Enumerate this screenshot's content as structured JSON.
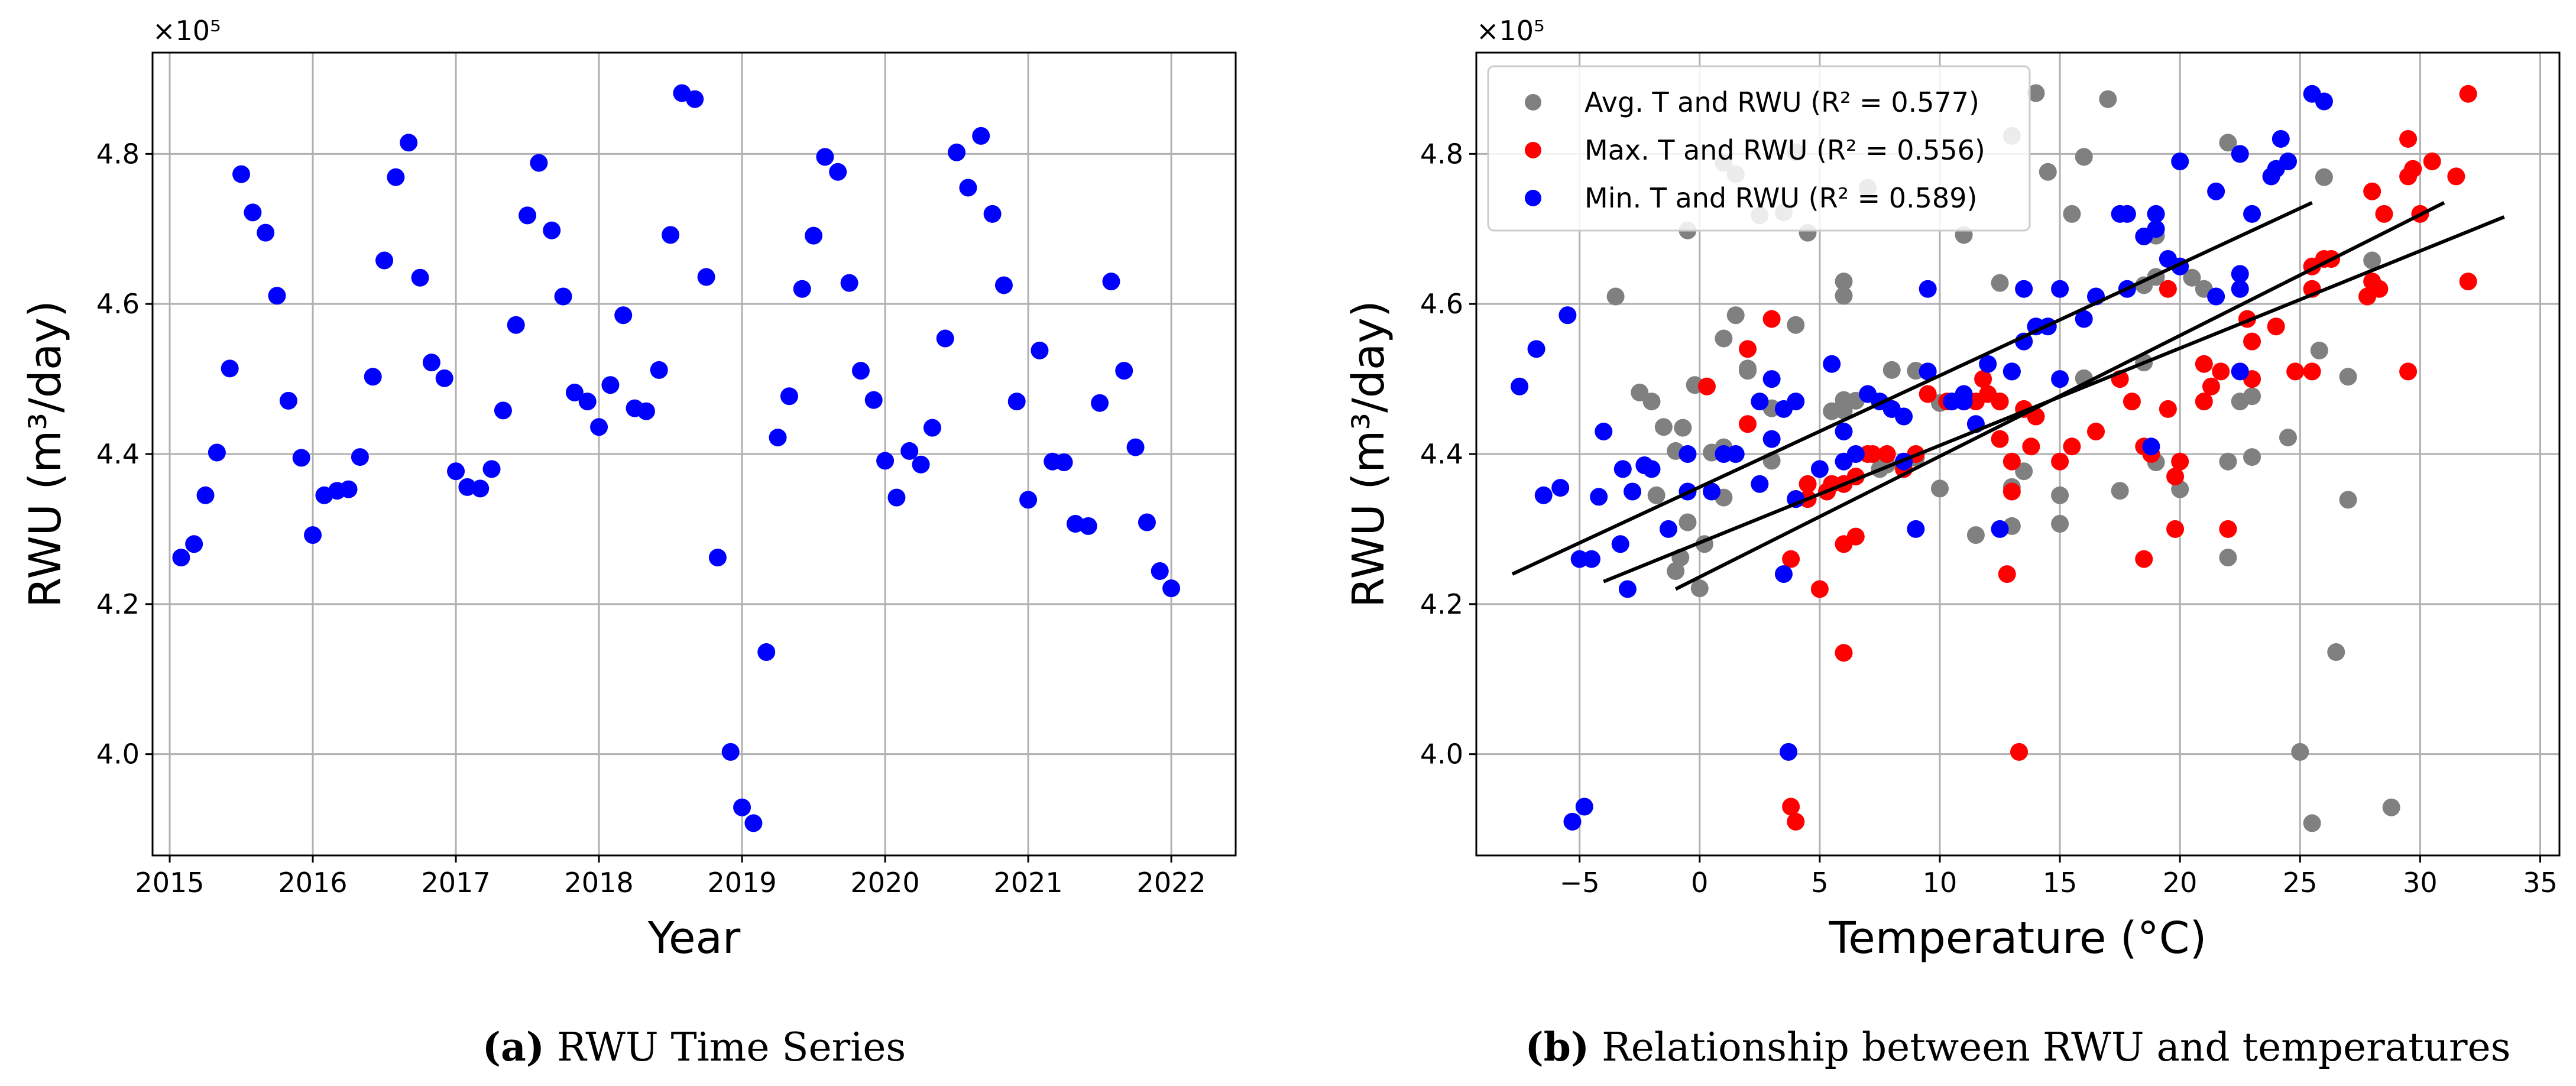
{
  "chart_data": [
    {
      "type": "scatter",
      "panel": "a",
      "caption_letter": "(a)",
      "caption_text": " RWU Time Series",
      "xlabel": "Year",
      "ylabel": "RWU (m³/day)",
      "y_multiplier": "×10⁵",
      "xlim": [
        2014.88,
        2022.45
      ],
      "ylim": [
        3.865,
        4.935
      ],
      "xticks": [
        2015,
        2016,
        2017,
        2018,
        2019,
        2020,
        2021,
        2022
      ],
      "yticks": [
        4.0,
        4.2,
        4.4,
        4.6,
        4.8
      ],
      "grid": true,
      "color": "#0000ff",
      "x": [
        2015.08,
        2015.17,
        2015.25,
        2015.33,
        2015.42,
        2015.5,
        2015.58,
        2015.67,
        2015.75,
        2015.83,
        2015.92,
        2016.0,
        2016.08,
        2016.17,
        2016.25,
        2016.33,
        2016.42,
        2016.5,
        2016.58,
        2016.67,
        2016.75,
        2016.83,
        2016.92,
        2017.0,
        2017.08,
        2017.17,
        2017.25,
        2017.33,
        2017.42,
        2017.5,
        2017.58,
        2017.67,
        2017.75,
        2017.83,
        2017.92,
        2018.0,
        2018.08,
        2018.17,
        2018.25,
        2018.33,
        2018.42,
        2018.5,
        2018.58,
        2018.67,
        2018.75,
        2018.83,
        2018.92,
        2019.0,
        2019.08,
        2019.17,
        2019.25,
        2019.33,
        2019.42,
        2019.5,
        2019.58,
        2019.67,
        2019.75,
        2019.83,
        2019.92,
        2020.0,
        2020.08,
        2020.17,
        2020.25,
        2020.33,
        2020.42,
        2020.5,
        2020.58,
        2020.67,
        2020.75,
        2020.83,
        2020.92,
        2021.0,
        2021.08,
        2021.17,
        2021.25,
        2021.33,
        2021.42,
        2021.5,
        2021.58,
        2021.67,
        2021.75,
        2021.83,
        2021.92,
        2022.0
      ],
      "y": [
        4.262,
        4.28,
        4.345,
        4.402,
        4.514,
        4.773,
        4.722,
        4.695,
        4.611,
        4.471,
        4.395,
        4.292,
        4.345,
        4.351,
        4.353,
        4.396,
        4.503,
        4.658,
        4.769,
        4.815,
        4.635,
        4.522,
        4.501,
        4.377,
        4.356,
        4.354,
        4.38,
        4.458,
        4.572,
        4.718,
        4.788,
        4.698,
        4.61,
        4.482,
        4.47,
        4.436,
        4.492,
        4.585,
        4.461,
        4.457,
        4.512,
        4.692,
        4.881,
        4.873,
        4.636,
        4.262,
        4.003,
        3.929,
        3.908,
        4.136,
        4.422,
        4.477,
        4.62,
        4.691,
        4.796,
        4.776,
        4.628,
        4.511,
        4.472,
        4.391,
        4.342,
        4.404,
        4.386,
        4.435,
        4.554,
        4.802,
        4.755,
        4.824,
        4.72,
        4.625,
        4.47,
        4.339,
        4.538,
        4.39,
        4.389,
        4.307,
        4.304,
        4.468,
        4.63,
        4.511,
        4.409,
        4.309,
        4.244,
        4.221
      ]
    },
    {
      "type": "scatter",
      "panel": "b",
      "caption_letter": "(b)",
      "caption_text": " Relationship between RWU and temperatures",
      "xlabel": "Temperature (°C)",
      "ylabel": "RWU (m³/day)",
      "y_multiplier": "×10⁵",
      "xlim": [
        -9.3,
        35.8
      ],
      "ylim": [
        3.865,
        4.935
      ],
      "xticks": [
        -5,
        0,
        5,
        10,
        15,
        20,
        25,
        30,
        35
      ],
      "xtick_labels": [
        "−5",
        "0",
        "5",
        "10",
        "15",
        "20",
        "25",
        "30",
        "35"
      ],
      "yticks": [
        4.0,
        4.2,
        4.4,
        4.6,
        4.8
      ],
      "grid": true,
      "legend": "top-left",
      "series": [
        {
          "name": "Avg. T and RWU",
          "r2_label": "(R² = 0.577)",
          "color": "#808080",
          "x": [
            -0.8,
            0.2,
            -1.8,
            0.5,
            2.0,
            1.5,
            3.5,
            4.5,
            6.0,
            6.5,
            9.0,
            11.5,
            15.0,
            17.5,
            20.0,
            23.0,
            27.0,
            28.0,
            26.0,
            22.0,
            20.5,
            18.5,
            16.0,
            13.5,
            13.0,
            10.0,
            7.5,
            6.0,
            4.0,
            2.5,
            1.0,
            -0.5,
            -3.5,
            -2.5,
            -2.0,
            -1.5,
            -0.2,
            1.5,
            3.0,
            5.5,
            8.0,
            11.0,
            14.0,
            17.0,
            19.0,
            22.0,
            25.0,
            28.8,
            25.5,
            26.5,
            24.5,
            23.0,
            21.0,
            19.0,
            16.0,
            14.5,
            12.5,
            9.0,
            6.0,
            3.0,
            1.0,
            -1.0,
            7.8,
            -0.7,
            1.0,
            4.0,
            7.0,
            13.0,
            15.5,
            18.5,
            22.5,
            27.0,
            25.8,
            22.0,
            19.0,
            15.0,
            13.0,
            10.0,
            6.0,
            2.0,
            1.0,
            -0.5,
            -1.0,
            0.0
          ],
          "y": [
            4.262,
            4.28,
            4.345,
            4.402,
            4.514,
            4.773,
            4.722,
            4.695,
            4.611,
            4.471,
            4.395,
            4.292,
            4.345,
            4.351,
            4.353,
            4.396,
            4.503,
            4.658,
            4.769,
            4.815,
            4.635,
            4.522,
            4.501,
            4.377,
            4.356,
            4.354,
            4.38,
            4.458,
            4.572,
            4.718,
            4.788,
            4.698,
            4.61,
            4.482,
            4.47,
            4.436,
            4.492,
            4.585,
            4.461,
            4.457,
            4.512,
            4.692,
            4.881,
            4.873,
            4.636,
            4.262,
            4.003,
            3.929,
            3.908,
            4.136,
            4.422,
            4.477,
            4.62,
            4.691,
            4.796,
            4.776,
            4.628,
            4.511,
            4.472,
            4.391,
            4.342,
            4.404,
            4.386,
            4.435,
            4.554,
            4.802,
            4.755,
            4.824,
            4.72,
            4.625,
            4.47,
            4.339,
            4.538,
            4.39,
            4.389,
            4.307,
            4.304,
            4.468,
            4.63,
            4.511,
            4.409,
            4.309,
            4.244,
            4.221
          ],
          "x_fit": [
            -1.0,
            31.0
          ],
          "y_fit": [
            4.22,
            4.735
          ]
        },
        {
          "name": "Max. T and RWU",
          "r2_label": "(R² = 0.556)",
          "color": "#ff0000",
          "x": [
            5.0,
            6.0,
            3.8,
            4.5,
            13.8,
            18.8,
            13.0,
            12.8,
            6.0,
            3.8,
            5.3,
            7.2,
            8.5,
            11.5,
            12.0,
            19.5,
            21.0,
            23.0,
            26.3,
            28.5,
            30.5,
            29.5,
            25.5,
            22.8,
            21.0,
            19.8,
            18.5,
            16.5,
            12.5,
            10.3,
            4.5,
            2.0,
            0.3,
            6.0,
            8.0,
            9.5,
            12.5,
            18.0,
            21.3,
            24.8,
            28.3,
            31.5,
            32.0,
            29.7,
            28.0,
            26.0,
            24.0,
            21.7,
            19.5,
            17.5,
            14.0,
            12.5,
            11.0,
            7.8,
            4.0,
            2.0,
            3.0,
            7.0,
            10.5,
            13.0,
            15.0,
            18.5,
            22.0,
            25.5,
            29.5,
            32.0,
            27.8,
            30.0,
            28.0,
            25.5,
            23.0,
            19.8,
            15.5,
            13.5,
            11.8,
            9.0,
            6.5,
            5.5,
            4.0,
            4.0,
            6.5,
            13.3,
            20.0,
            29.5
          ],
          "y": [
            4.22,
            4.28,
            4.26,
            4.34,
            4.41,
            4.4,
            4.35,
            4.24,
            4.135,
            3.93,
            4.35,
            4.4,
            4.38,
            4.47,
            4.48,
            4.62,
            4.52,
            4.55,
            4.66,
            4.72,
            4.79,
            4.82,
            4.65,
            4.58,
            4.47,
            4.3,
            4.26,
            4.43,
            4.42,
            4.47,
            4.36,
            4.44,
            4.49,
            4.36,
            4.46,
            4.48,
            4.47,
            4.47,
            4.49,
            4.51,
            4.62,
            4.77,
            4.88,
            4.78,
            4.75,
            4.66,
            4.57,
            4.51,
            4.46,
            4.5,
            4.45,
            4.47,
            4.47,
            4.4,
            4.34,
            4.54,
            4.58,
            4.4,
            4.47,
            4.39,
            4.39,
            4.41,
            4.3,
            4.51,
            4.77,
            4.63,
            4.61,
            4.72,
            4.63,
            4.62,
            4.5,
            4.37,
            4.41,
            4.46,
            4.5,
            4.4,
            4.37,
            4.36,
            4.34,
            3.91,
            4.29,
            4.003,
            4.39,
            4.51
          ]
        },
        {
          "name": "Min. T and RWU",
          "r2_label": "(R² = 0.589)",
          "color": "#0000ff",
          "x": [
            -6.5,
            -4.2,
            -5.8,
            -3.2,
            -2.3,
            0.5,
            2.5,
            3.0,
            4.0,
            5.5,
            6.0,
            7.0,
            8.5,
            9.5,
            11.0,
            13.5,
            14.5,
            16.5,
            19.0,
            21.5,
            23.0,
            23.8,
            25.5,
            26.0,
            24.2,
            22.5,
            20.0,
            17.8,
            14.0,
            13.0,
            9.5,
            8.0,
            6.5,
            3.5,
            1.0,
            -0.5,
            -2.0,
            -3.0,
            -4.5,
            -7.5,
            -6.8,
            -5.5,
            -4.0,
            -2.8,
            -1.3,
            1.5,
            3.0,
            3.5,
            5.0,
            7.5,
            10.5,
            12.0,
            15.0,
            18.5,
            22.5,
            24.5,
            22.5,
            19.5,
            17.5,
            15.0,
            13.5,
            11.0,
            8.5,
            6.0,
            4.0,
            2.5,
            -0.5,
            -3.3,
            -5.0,
            -5.3,
            -4.8,
            3.7,
            9.0,
            12.5,
            17.8,
            19.0,
            18.8,
            21.5,
            24.0,
            22.5,
            20.0,
            16.0,
            13.0,
            11.5
          ],
          "y": [
            4.345,
            4.343,
            4.355,
            4.38,
            4.385,
            4.35,
            4.47,
            4.5,
            4.47,
            4.52,
            4.43,
            4.48,
            4.45,
            4.62,
            4.47,
            4.62,
            4.57,
            4.61,
            4.72,
            4.75,
            4.72,
            4.77,
            4.88,
            4.87,
            4.82,
            4.8,
            4.79,
            4.72,
            4.57,
            4.51,
            4.51,
            4.46,
            4.4,
            4.24,
            4.4,
            4.4,
            4.38,
            4.22,
            4.26,
            4.49,
            4.54,
            4.585,
            4.43,
            4.35,
            4.3,
            4.4,
            4.42,
            4.46,
            4.38,
            4.47,
            4.47,
            4.52,
            4.5,
            4.69,
            4.62,
            4.79,
            4.64,
            4.66,
            4.72,
            4.62,
            4.55,
            4.48,
            4.39,
            4.39,
            4.34,
            4.36,
            4.35,
            4.28,
            4.26,
            3.91,
            3.93,
            4.003,
            4.3,
            4.3,
            4.62,
            4.7,
            4.41,
            4.61,
            4.78,
            4.51,
            4.65,
            4.58,
            4.51,
            4.44
          ],
          "x_fit": [
            -7.8,
            25.5
          ],
          "y_fit": [
            4.24,
            4.735
          ]
        }
      ],
      "extra_fit": {
        "x_fit": [
          -4.0,
          33.5
        ],
        "y_fit": [
          4.23,
          4.716
        ]
      }
    }
  ]
}
